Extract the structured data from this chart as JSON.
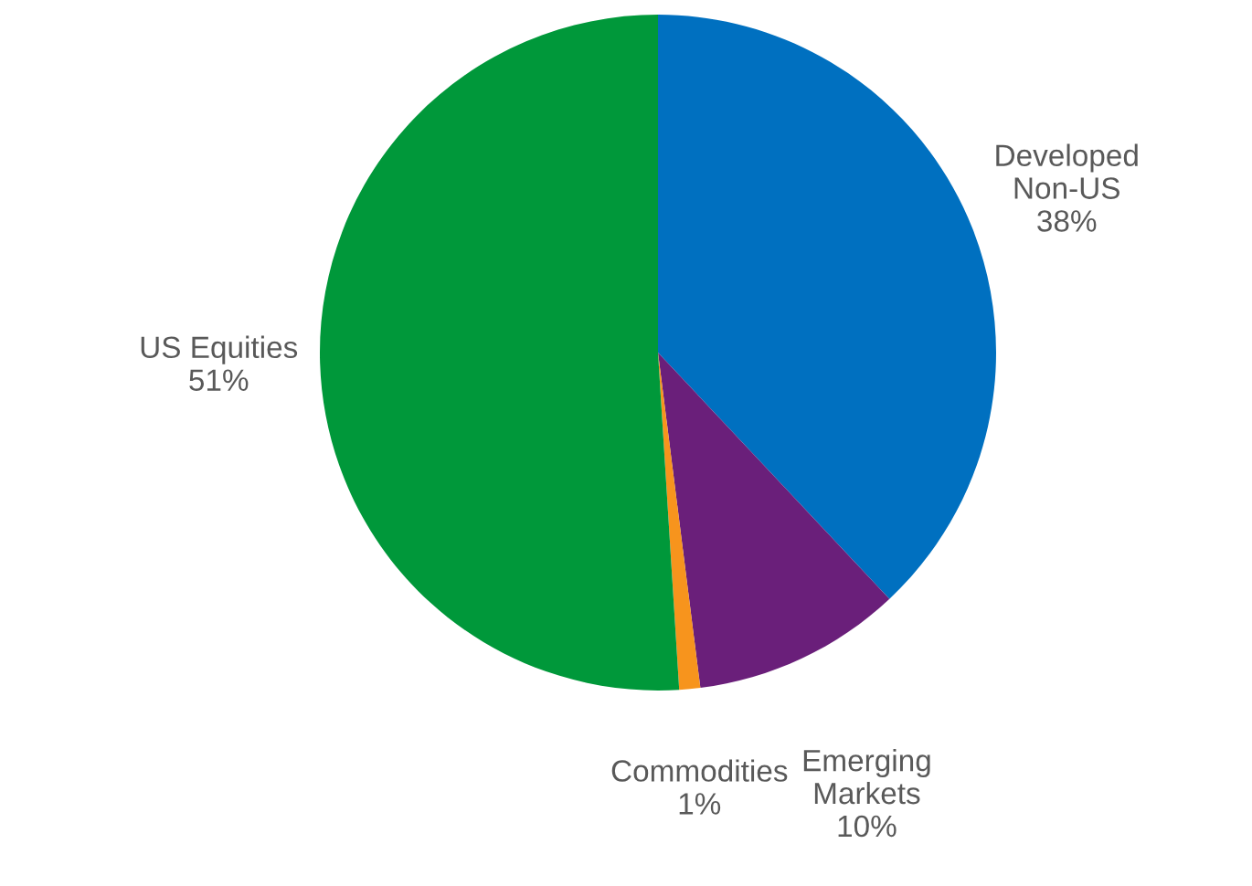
{
  "chart_data": {
    "type": "pie",
    "categories": [
      "Developed\nNon-US",
      "Emerging\nMarkets",
      "Commodities",
      "US Equities"
    ],
    "values": [
      38,
      10,
      1,
      51
    ],
    "colors": [
      "#0070c0",
      "#6a1f7a",
      "#f7941d",
      "#00983a"
    ],
    "value_labels": [
      "38%",
      "10%",
      "1%",
      "51%"
    ]
  }
}
